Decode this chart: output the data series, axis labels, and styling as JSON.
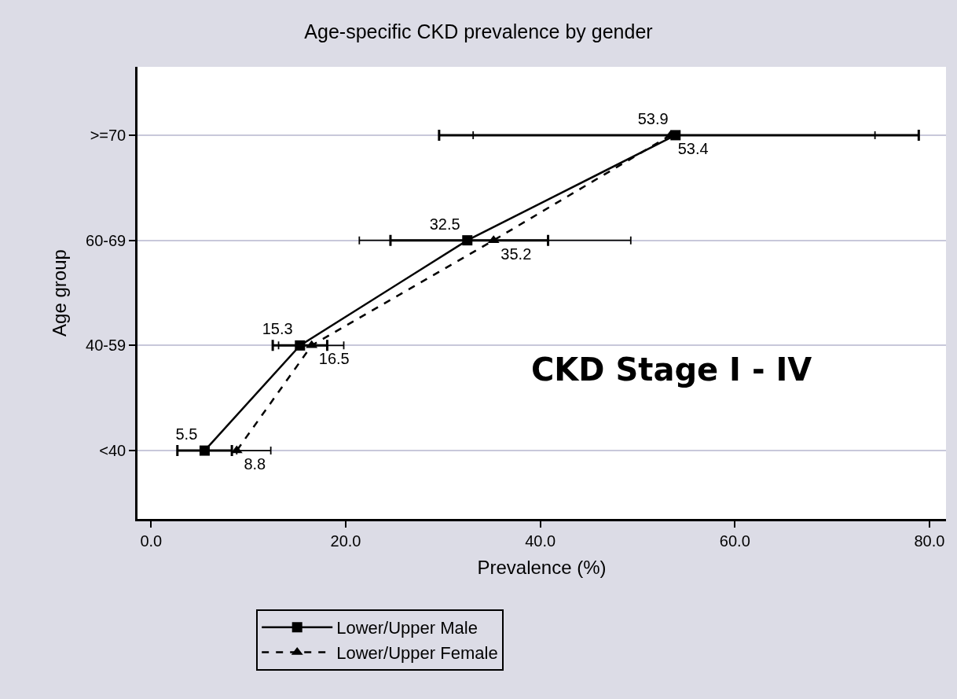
{
  "chart_data": {
    "type": "line",
    "orientation": "horizontal",
    "title": "Age-specific CKD prevalence by gender",
    "xlabel": "Prevalence (%)",
    "ylabel": "Age group",
    "categories": [
      ">=70",
      "60-69",
      "40-59",
      "<40"
    ],
    "series": [
      {
        "name": "Lower/Upper Male",
        "color": "#000000",
        "values": [
          53.9,
          32.5,
          15.3,
          5.5
        ],
        "errors": [
          [
            29.6,
            78.9
          ],
          [
            24.6,
            40.8
          ],
          [
            12.5,
            18.1
          ],
          [
            2.7,
            8.3
          ]
        ],
        "line_style": "solid",
        "marker": "square"
      },
      {
        "name": "Lower/Upper Female",
        "color": "#000000",
        "values": [
          53.4,
          35.2,
          16.5,
          8.8
        ],
        "errors": [
          [
            33.1,
            74.4
          ],
          [
            21.4,
            49.3
          ],
          [
            13.1,
            19.8
          ],
          [
            8.8,
            12.3
          ]
        ],
        "line_style": "dashed",
        "marker": "triangle"
      }
    ],
    "xlim": [
      -1.4,
      81.7
    ],
    "xticks": [
      {
        "value": 0,
        "label": "0.0"
      },
      {
        "value": 20,
        "label": "20.0"
      },
      {
        "value": 40,
        "label": "40.0"
      },
      {
        "value": 60,
        "label": "60.0"
      },
      {
        "value": 80,
        "label": "80.0"
      }
    ],
    "data_labels": true,
    "grid": "y",
    "legend": "bottom",
    "annotations": [
      "CKD Stage I - IV"
    ]
  }
}
